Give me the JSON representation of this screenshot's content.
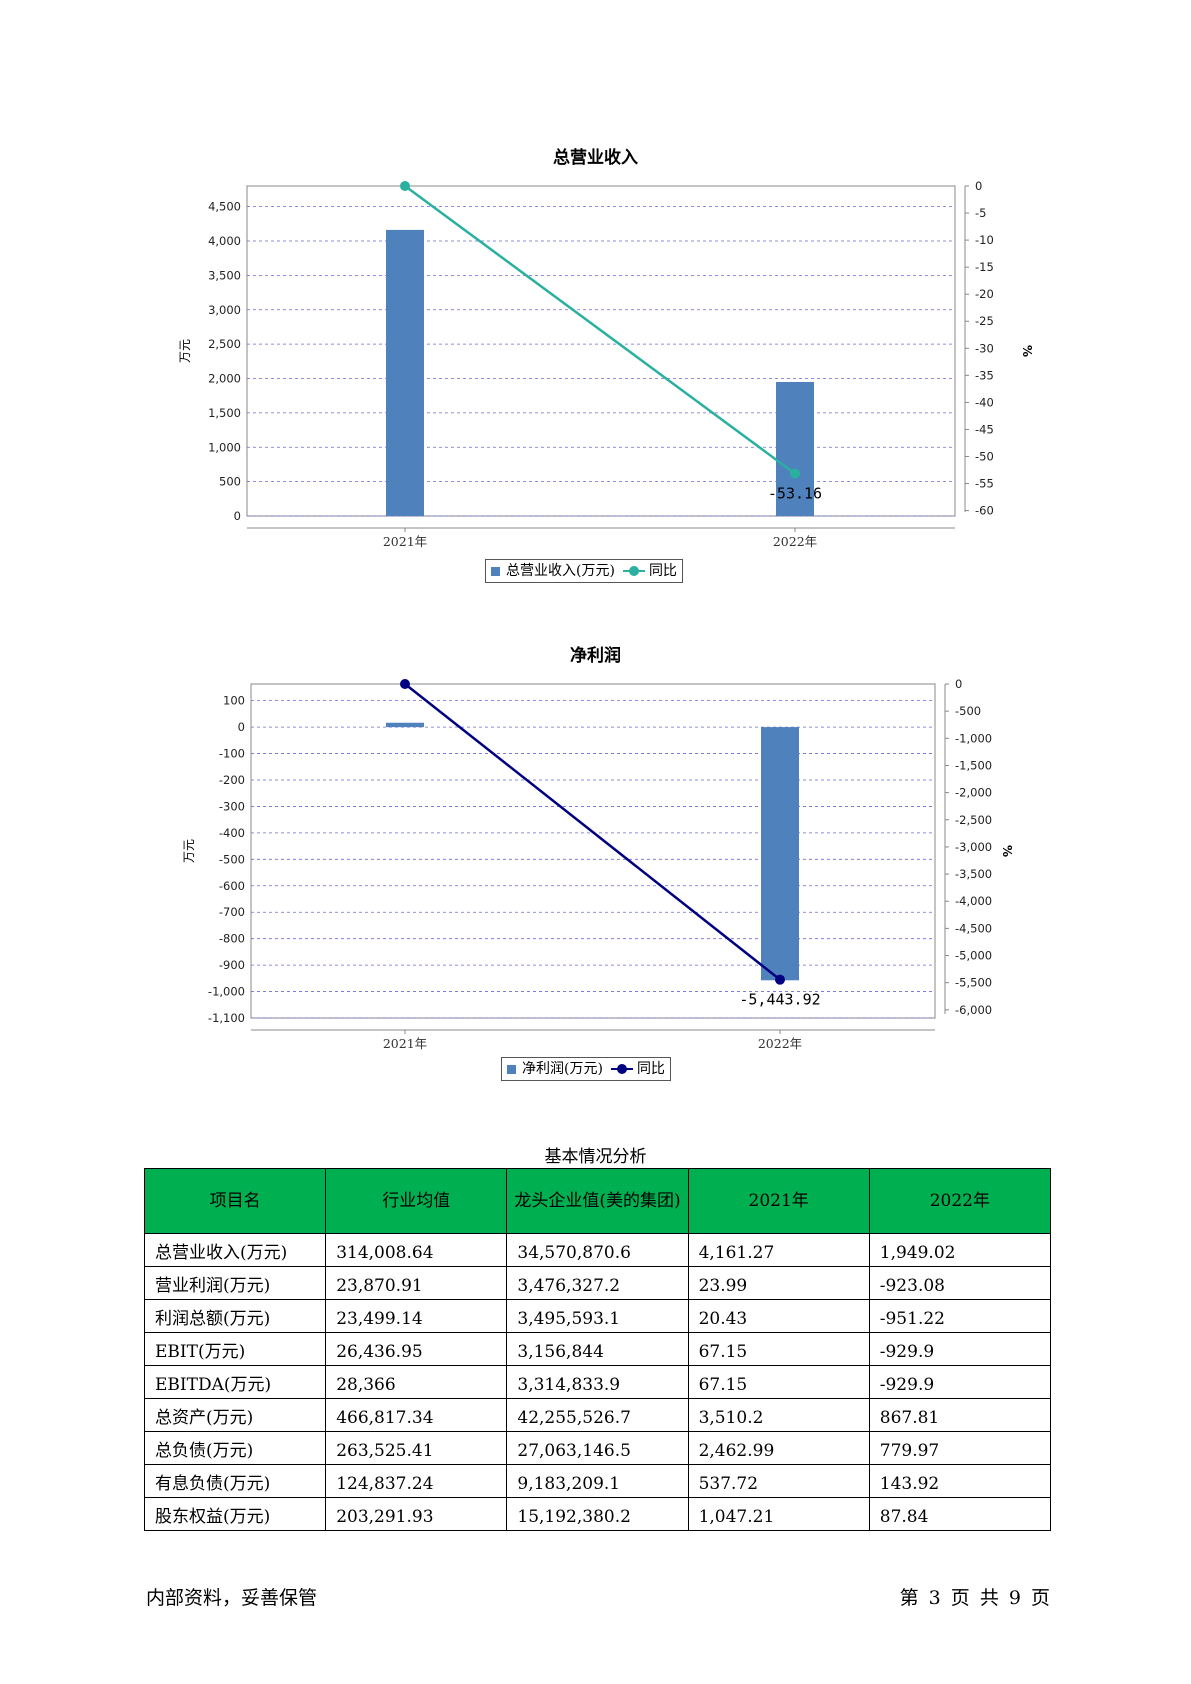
{
  "charts": [
    {
      "title": "总营业收入",
      "chart_data": {
        "type": "bar",
        "title": "总营业收入",
        "categories": [
          "2021年",
          "2022年"
        ],
        "ylabel": "万元",
        "y2label": "%",
        "ylim": [
          0,
          4800
        ],
        "y2lim": [
          -61,
          0
        ],
        "yticks": [
          "0",
          "500",
          "1,000",
          "1,500",
          "2,000",
          "2,500",
          "3,000",
          "3,500",
          "4,000",
          "4,500"
        ],
        "y2ticks": [
          "0",
          "-5",
          "-10",
          "-15",
          "-20",
          "-25",
          "-30",
          "-35",
          "-40",
          "-45",
          "-50",
          "-55",
          "-60"
        ],
        "grid": true,
        "series": [
          {
            "name": "总营业收入(万元)",
            "type": "bar",
            "values": [
              4161.27,
              1949.02
            ],
            "color": "#4f81bd"
          },
          {
            "name": "同比",
            "type": "line",
            "axis": "right",
            "values": [
              0,
              -53.16
            ],
            "labels": [
              "",
              "-53.16"
            ],
            "color": "#2ab0a0"
          }
        ],
        "legend_position": "bottom-center"
      }
    },
    {
      "title": "净利润",
      "chart_data": {
        "type": "bar",
        "title": "净利润",
        "categories": [
          "2021年",
          "2022年"
        ],
        "ylabel": "万元",
        "y2label": "%",
        "ylim": [
          -1100,
          163
        ],
        "y2lim": [
          -6150,
          0
        ],
        "yticks": [
          "100",
          "0",
          "-100",
          "-200",
          "-300",
          "-400",
          "-500",
          "-600",
          "-700",
          "-800",
          "-900",
          "-1,000",
          "-1,100"
        ],
        "y2ticks": [
          "0",
          "-500",
          "-1,000",
          "-1,500",
          "-2,000",
          "-2,500",
          "-3,000",
          "-3,500",
          "-4,000",
          "-4,500",
          "-5,000",
          "-5,500",
          "-6,000"
        ],
        "grid": true,
        "series": [
          {
            "name": "净利润(万元)",
            "type": "bar",
            "values": [
              16.5,
              -957.4
            ],
            "color": "#4f81bd"
          },
          {
            "name": "同比",
            "type": "line",
            "axis": "right",
            "values": [
              0,
              -5443.92
            ],
            "labels": [
              "",
              "-5,443.92"
            ],
            "color": "#000080"
          }
        ],
        "legend_position": "bottom-center"
      }
    }
  ],
  "table": {
    "caption": "基本情况分析",
    "headers": [
      "项目名",
      "行业均值",
      "龙头企业值(美的集团)",
      "2021年",
      "2022年"
    ],
    "rows": [
      [
        "总营业收入(万元)",
        "314,008.64",
        "34,570,870.6",
        "4,161.27",
        "1,949.02"
      ],
      [
        "营业利润(万元)",
        "23,870.91",
        "3,476,327.2",
        "23.99",
        "-923.08"
      ],
      [
        "利润总额(万元)",
        "23,499.14",
        "3,495,593.1",
        "20.43",
        "-951.22"
      ],
      [
        "EBIT(万元)",
        "26,436.95",
        "3,156,844",
        "67.15",
        "-929.9"
      ],
      [
        "EBITDA(万元)",
        "28,366",
        "3,314,833.9",
        "67.15",
        "-929.9"
      ],
      [
        "总资产(万元)",
        "466,817.34",
        "42,255,526.7",
        "3,510.2",
        "867.81"
      ],
      [
        "总负债(万元)",
        "263,525.41",
        "27,063,146.5",
        "2,462.99",
        "779.97"
      ],
      [
        "有息负债(万元)",
        "124,837.24",
        "9,183,209.1",
        "537.72",
        "143.92"
      ],
      [
        "股东权益(万元)",
        "203,291.93",
        "15,192,380.2",
        "1,047.21",
        "87.84"
      ]
    ]
  },
  "footer": {
    "left": "内部资料，妥善保管",
    "right": "第 3 页  共 9 页"
  }
}
